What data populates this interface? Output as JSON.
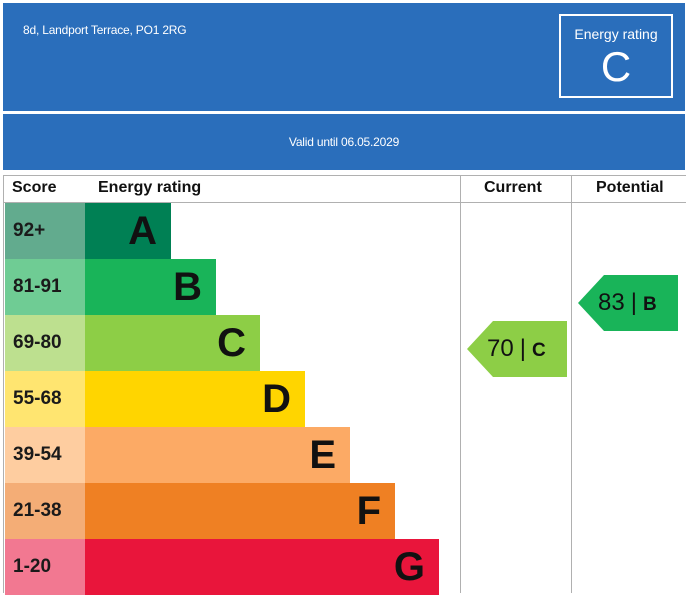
{
  "header": {
    "address": "8d, Landport Terrace, PO1 2RG",
    "rating_label": "Energy rating",
    "rating_value": "C"
  },
  "valid_text": "Valid until 06.05.2029",
  "table": {
    "col_score": "Score",
    "col_rating": "Energy rating",
    "col_current": "Current",
    "col_potential": "Potential"
  },
  "chart_data": {
    "type": "bar",
    "categories": [
      "A",
      "B",
      "C",
      "D",
      "E",
      "F",
      "G"
    ],
    "score_ranges": [
      "92+",
      "81-91",
      "69-80",
      "55-68",
      "39-54",
      "21-38",
      "1-20"
    ],
    "colors": [
      "#008054",
      "#19b459",
      "#8dce46",
      "#ffd500",
      "#fcaa65",
      "#ef8023",
      "#e9153b"
    ],
    "score_cell_colors": [
      "#62ab8e",
      "#6fcc94",
      "#bde08f",
      "#ffe570",
      "#fecda0",
      "#f4ad76",
      "#f27891"
    ],
    "current": {
      "value": 70,
      "band": "C",
      "color": "#8dce46"
    },
    "potential": {
      "value": 83,
      "band": "B",
      "color": "#19b459"
    }
  }
}
